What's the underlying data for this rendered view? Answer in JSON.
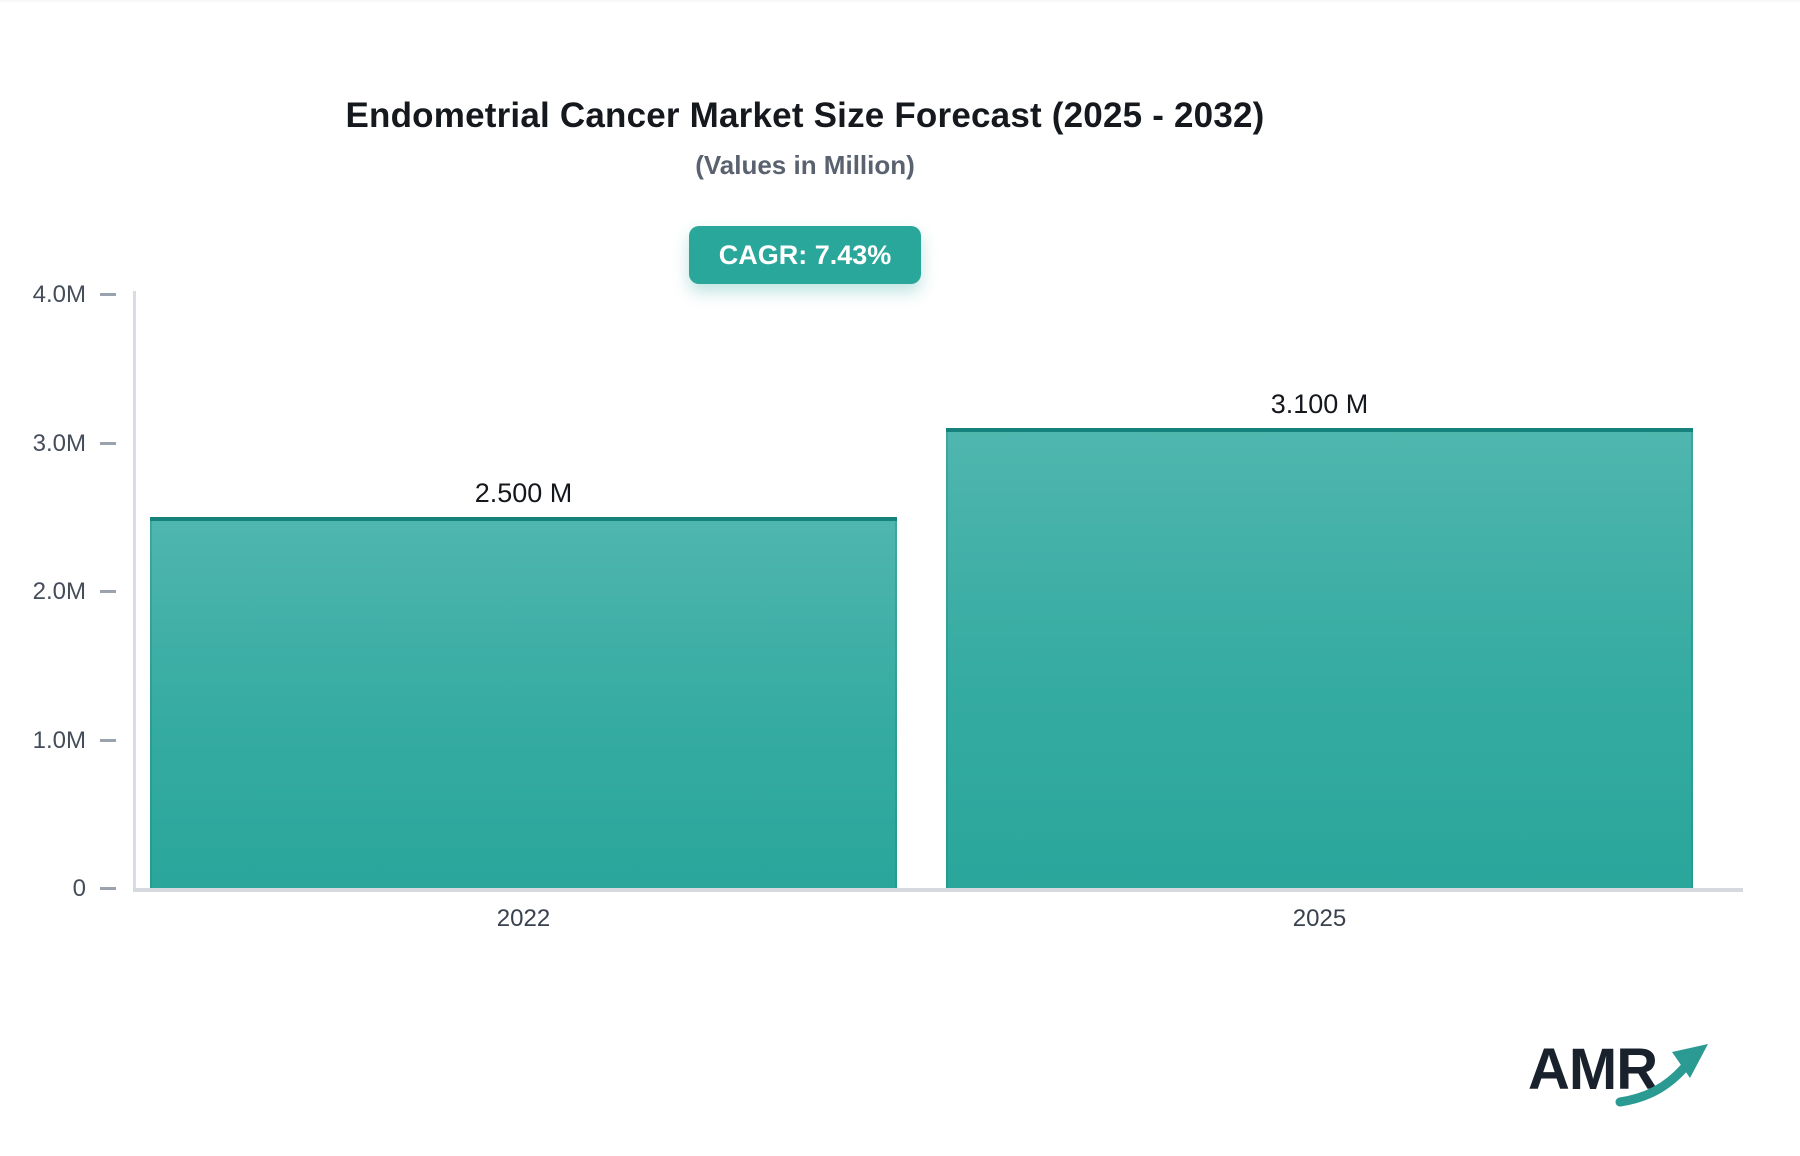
{
  "header": {
    "title": "Endometrial Cancer Market Size Forecast (2025 - 2032)",
    "subtitle": "(Values in Million)"
  },
  "cagr_badge": {
    "label": "CAGR: 7.43%",
    "background": "#2aa79b",
    "text_color": "#ffffff"
  },
  "chart_data": {
    "type": "bar",
    "title": "Endometrial Cancer Market Size Forecast (2025 - 2032)",
    "subtitle": "(Values in Million)",
    "unit": "Million",
    "cagr_percent": 7.43,
    "categories": [
      "2022",
      "2025"
    ],
    "values": [
      2500000,
      3100000
    ],
    "values_in_millions": [
      2.5,
      3.1
    ],
    "value_labels": [
      "2.500 M",
      "3.100 M"
    ],
    "ylim": [
      0,
      4000000
    ],
    "ytick_labels": [
      "4.0M",
      "3.0M",
      "2.0M",
      "1.0M",
      "0"
    ],
    "ytick_values": [
      4000000,
      3000000,
      2000000,
      1000000,
      0
    ],
    "grid": false,
    "legend_visible": false,
    "bar_gradient_top": "#4fb6ae",
    "bar_gradient_bottom": "#2aa69b",
    "bar_edge_color": "#15837c",
    "axis_color": "#d9dce2"
  },
  "branding": {
    "logo_text": "AMR",
    "logo_color": "#19222c",
    "arrow_icon": "growth-arrow-icon",
    "arrow_color": "#2b9a93"
  }
}
